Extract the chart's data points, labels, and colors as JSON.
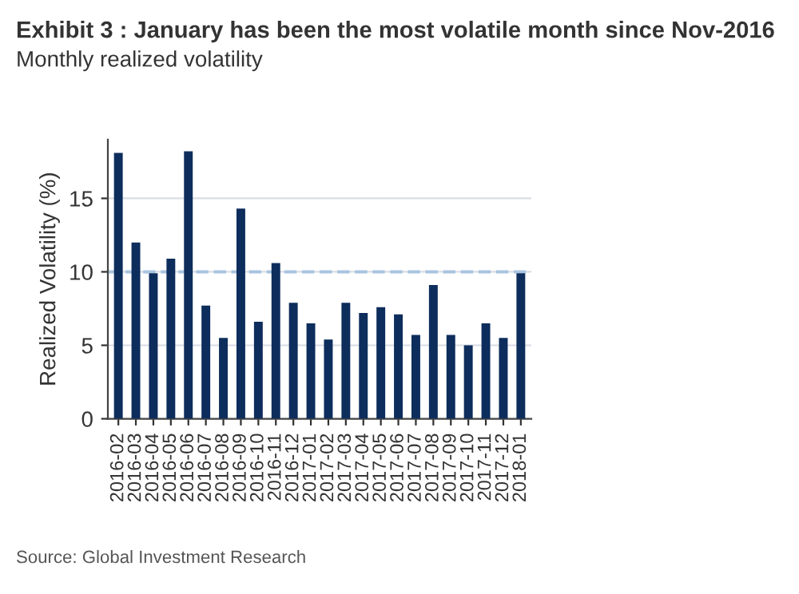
{
  "chart_data": {
    "type": "bar",
    "title": "Exhibit 3 : January has been the most volatile month since Nov-2016",
    "subtitle": "Monthly realized volatility",
    "ylabel": "Realized Volatility (%)",
    "categories": [
      "2016-02",
      "2016-03",
      "2016-04",
      "2016-05",
      "2016-06",
      "2016-07",
      "2016-08",
      "2016-09",
      "2016-10",
      "2016-11",
      "2016-12",
      "2017-01",
      "2017-02",
      "2017-03",
      "2017-04",
      "2017-05",
      "2017-06",
      "2017-07",
      "2017-08",
      "2017-09",
      "2017-10",
      "2017-11",
      "2017-12",
      "2018-01"
    ],
    "values": [
      18.1,
      12.0,
      9.9,
      10.9,
      18.2,
      7.7,
      5.5,
      14.3,
      6.6,
      10.6,
      7.9,
      6.5,
      5.4,
      7.9,
      7.2,
      7.6,
      7.1,
      5.7,
      9.1,
      5.7,
      5.0,
      6.5,
      5.5,
      9.9
    ],
    "color": "#0d2d5c",
    "ylim": [
      0,
      19
    ],
    "yticks": [
      0,
      5,
      10,
      15
    ],
    "grid": "y",
    "ref_lines": [
      {
        "axis": "y",
        "value": 10,
        "color": "#a9c4e0",
        "line_style": "dashed"
      }
    ],
    "annotations": [
      "Source: Global Investment Research"
    ]
  }
}
